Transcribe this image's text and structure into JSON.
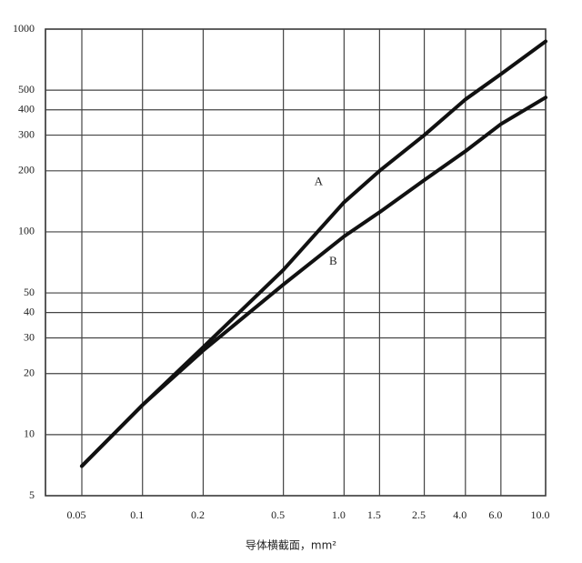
{
  "chart_data": {
    "type": "line",
    "x_label": "导体横截面，mm²",
    "log_x": true,
    "log_y": true,
    "grid": true,
    "xlim": [
      0.033,
      10.0
    ],
    "ylim": [
      5,
      1000
    ],
    "xticks": [
      0.05,
      0.1,
      0.2,
      0.5,
      {
        "value": 1,
        "label": "1.0"
      },
      1.5,
      2.5,
      {
        "value": 4,
        "label": "4.0"
      },
      {
        "value": 6,
        "label": "6.0"
      },
      {
        "value": 10,
        "label": "10.0"
      }
    ],
    "yticks": [
      5,
      10,
      20,
      30,
      40,
      50,
      100,
      200,
      300,
      400,
      500,
      1000
    ],
    "series": [
      {
        "name": "A",
        "color": "#111111",
        "x": [
          0.05,
          0.1,
          0.2,
          0.5,
          1,
          1.5,
          2.5,
          4,
          6,
          10
        ],
        "values": [
          7,
          14,
          27,
          65,
          140,
          200,
          300,
          450,
          600,
          870
        ]
      },
      {
        "name": "B",
        "color": "#111111",
        "x": [
          0.05,
          0.1,
          0.2,
          0.5,
          1,
          1.5,
          2.5,
          4,
          6,
          10
        ],
        "values": [
          7,
          14,
          26,
          55,
          95,
          125,
          180,
          250,
          340,
          460
        ]
      }
    ]
  }
}
